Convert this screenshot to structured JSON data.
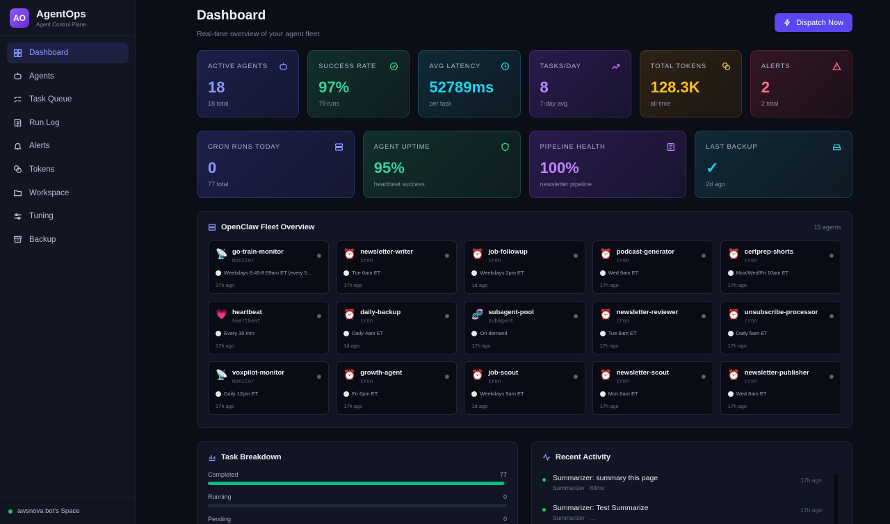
{
  "brand": {
    "logo": "AO",
    "title": "AgentOps",
    "subtitle": "Agent Control Plane"
  },
  "sidebar": {
    "items": [
      {
        "label": "Dashboard",
        "icon": "grid-icon",
        "active": true
      },
      {
        "label": "Agents",
        "icon": "bot-icon"
      },
      {
        "label": "Task Queue",
        "icon": "list-check-icon"
      },
      {
        "label": "Run Log",
        "icon": "log-icon"
      },
      {
        "label": "Alerts",
        "icon": "bell-icon"
      },
      {
        "label": "Tokens",
        "icon": "coins-icon"
      },
      {
        "label": "Workspace",
        "icon": "folder-icon"
      },
      {
        "label": "Tuning",
        "icon": "sliders-icon"
      },
      {
        "label": "Backup",
        "icon": "archive-icon"
      }
    ],
    "workspace": "awsnova bot's Space"
  },
  "header": {
    "title": "Dashboard",
    "subtitle": "Real-time overview of your agent fleet",
    "dispatch_label": "Dispatch Now"
  },
  "stats_row1": [
    {
      "label": "ACTIVE AGENTS",
      "value": "18",
      "sub": "18 total",
      "color": "#8b9bff",
      "icon": "bot-icon"
    },
    {
      "label": "SUCCESS RATE",
      "value": "97%",
      "sub": "79 runs",
      "color": "#34d399",
      "icon": "check-circle-icon"
    },
    {
      "label": "AVG LATENCY",
      "value": "52789ms",
      "sub": "per task",
      "color": "#22d3ee",
      "icon": "clock-icon"
    },
    {
      "label": "TASKS/DAY",
      "value": "8",
      "sub": "7-day avg",
      "color": "#c084fc",
      "icon": "trend-up-icon"
    },
    {
      "label": "TOTAL TOKENS",
      "value": "128.3K",
      "sub": "all time",
      "color": "#fbbf24",
      "icon": "coins-icon"
    },
    {
      "label": "ALERTS",
      "value": "2",
      "sub": "2 total",
      "color": "#fb7185",
      "icon": "warning-icon"
    }
  ],
  "stats_row2": [
    {
      "label": "CRON RUNS TODAY",
      "value": "0",
      "sub": "77 total",
      "color": "#8b9bff",
      "icon": "server-icon"
    },
    {
      "label": "AGENT UPTIME",
      "value": "95%",
      "sub": "heartbeat success",
      "color": "#34d399",
      "icon": "shield-icon"
    },
    {
      "label": "PIPELINE HEALTH",
      "value": "100%",
      "sub": "newsletter pipeline",
      "color": "#c084fc",
      "icon": "newspaper-icon"
    },
    {
      "label": "LAST BACKUP",
      "value": "✓",
      "sub": "2d ago",
      "color": "#22d3ee",
      "icon": "drive-icon"
    }
  ],
  "fleet": {
    "title": "OpenClaw Fleet Overview",
    "count": "15 agents",
    "agents": [
      {
        "emoji": "📡",
        "name": "go-train-monitor",
        "type": "monitor",
        "schedule": "Weekdays 8:45-8:59am ET (every 5...",
        "ago": "17h ago"
      },
      {
        "emoji": "⏰",
        "name": "newsletter-writer",
        "type": "cron",
        "schedule": "Tue 6am ET",
        "ago": "17h ago"
      },
      {
        "emoji": "⏰",
        "name": "job-followup",
        "type": "cron",
        "schedule": "Weekdays 2pm ET",
        "ago": "1d ago"
      },
      {
        "emoji": "⏰",
        "name": "podcast-generator",
        "type": "cron",
        "schedule": "Wed 9am ET",
        "ago": "17h ago"
      },
      {
        "emoji": "⏰",
        "name": "certprep-shorts",
        "type": "cron",
        "schedule": "Mon/Wed/Fri 10am ET",
        "ago": "17h ago"
      },
      {
        "emoji": "💗",
        "name": "heartbeat",
        "type": "heartbeat",
        "schedule": "Every 30 min",
        "ago": "17h ago"
      },
      {
        "emoji": "⏰",
        "name": "daily-backup",
        "type": "cron",
        "schedule": "Daily 4am ET",
        "ago": "1d ago"
      },
      {
        "emoji": "🧬",
        "name": "subagent-pool",
        "type": "subagent",
        "schedule": "On demand",
        "ago": "17h ago"
      },
      {
        "emoji": "⏰",
        "name": "newsletter-reviewer",
        "type": "cron",
        "schedule": "Tue 8am ET",
        "ago": "17h ago"
      },
      {
        "emoji": "⏰",
        "name": "unsubscribe-processor",
        "type": "cron",
        "schedule": "Daily 5am ET",
        "ago": "17h ago"
      },
      {
        "emoji": "📡",
        "name": "voxpilot-monitor",
        "type": "monitor",
        "schedule": "Daily 12pm ET",
        "ago": "17h ago"
      },
      {
        "emoji": "⏰",
        "name": "growth-agent",
        "type": "cron",
        "schedule": "Fri 6pm ET",
        "ago": "17h ago"
      },
      {
        "emoji": "⏰",
        "name": "job-scout",
        "type": "cron",
        "schedule": "Weekdays 9am ET",
        "ago": "1d ago"
      },
      {
        "emoji": "⏰",
        "name": "newsletter-scout",
        "type": "cron",
        "schedule": "Mon 6am ET",
        "ago": "17h ago"
      },
      {
        "emoji": "⏰",
        "name": "newsletter-publisher",
        "type": "cron",
        "schedule": "Wed 8am ET",
        "ago": "17h ago"
      }
    ]
  },
  "task_breakdown": {
    "title": "Task Breakdown",
    "rows": [
      {
        "label": "Completed",
        "value": 77,
        "fraction": 0.99
      },
      {
        "label": "Running",
        "value": 0,
        "fraction": 0
      },
      {
        "label": "Pending",
        "value": 0,
        "fraction": 0
      }
    ]
  },
  "activity": {
    "title": "Recent Activity",
    "items": [
      {
        "title": "Summarizer: summary this page",
        "sub": "Summarizer · 83ms",
        "time": "17h ago"
      },
      {
        "title": "Summarizer: Test Summarize",
        "sub": "Summarizer · ...",
        "time": "17h ago"
      }
    ]
  }
}
